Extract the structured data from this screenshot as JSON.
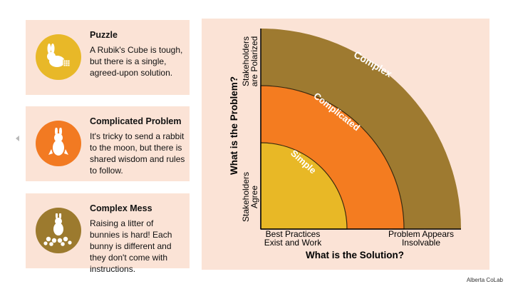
{
  "cards": [
    {
      "title": "Puzzle",
      "text": "A Rubik's Cube is tough, but there is a single, agreed-upon solution.",
      "icon": "rabbit-with-cube-icon",
      "color": "#e8b828"
    },
    {
      "title": "Complicated Problem",
      "text": "It's tricky to send a rabbit to the moon, but there is shared wisdom and rules to follow.",
      "icon": "rabbit-rocket-icon",
      "color": "#f27a22"
    },
    {
      "title": "Complex Mess",
      "text": "Raising a litter of bunnies is hard!  Each bunny is different and they don't come with instructions.",
      "icon": "rabbit-family-icon",
      "color": "#9c7a2e"
    }
  ],
  "diagram": {
    "y_axis_title": "What is the Problem?",
    "y_top": [
      "Stakeholders",
      "are Polarized"
    ],
    "y_bottom": [
      "Stakeholders",
      "Agree"
    ],
    "x_axis_title": "What is the Solution?",
    "x_left": [
      "Best Practices",
      "Exist and Work"
    ],
    "x_right": [
      "Problem Appears",
      "Insolvable"
    ],
    "zones": [
      {
        "label": "Complex",
        "color": "#9e7a30"
      },
      {
        "label": "Complicated",
        "color": "#f47c20"
      },
      {
        "label": "Simple",
        "color": "#e8b826"
      }
    ]
  },
  "credit": "Alberta CoLab"
}
